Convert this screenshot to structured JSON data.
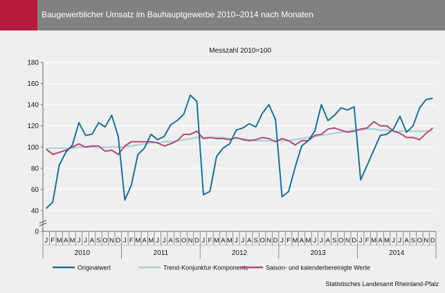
{
  "title": "Baugewerblicher Umsatz im Bauhauptgewerbe 2010–2014 nach Monaten",
  "source": "Statistisches Landesamt Rheinland-Pfalz",
  "chart_data": {
    "type": "line",
    "subtitle": "Messzahl 2010=100",
    "month_labels": [
      "J",
      "F",
      "M",
      "A",
      "M",
      "J",
      "J",
      "A",
      "S",
      "O",
      "N",
      "D"
    ],
    "years": [
      "2010",
      "2011",
      "2012",
      "2013",
      "2014"
    ],
    "y_ticks": [
      0,
      40,
      60,
      80,
      100,
      120,
      140,
      160,
      180
    ],
    "y_axis_break": true,
    "ylim": [
      0,
      180
    ],
    "grid": true,
    "legend_position": "bottom",
    "series": [
      {
        "name": "Originalwert",
        "color": "#1a6f97",
        "values": [
          42,
          48,
          83,
          95,
          102,
          123,
          111,
          112,
          123,
          119,
          130,
          110,
          50,
          64,
          93,
          99,
          112,
          107,
          110,
          121,
          125,
          131,
          149,
          143,
          55,
          58,
          91,
          99,
          103,
          116,
          118,
          122,
          119,
          132,
          140,
          126,
          53,
          58,
          81,
          101,
          106,
          115,
          140,
          125,
          130,
          137,
          135,
          138,
          69,
          83,
          97,
          111,
          112,
          117,
          129,
          114,
          120,
          137,
          145,
          146
        ]
      },
      {
        "name": "Trend-Konjunktur-Komponente",
        "color": "#a9cfe0",
        "values": [
          99,
          99,
          99,
          99,
          99,
          100,
          100,
          100,
          100,
          100,
          100,
          100,
          100,
          101,
          102,
          103,
          104,
          104,
          105,
          105,
          106,
          107,
          108,
          109,
          109,
          109,
          109,
          109,
          108,
          108,
          108,
          107,
          106,
          106,
          106,
          106,
          106,
          106,
          107,
          108,
          109,
          110,
          111,
          112,
          113,
          114,
          115,
          116,
          116,
          117,
          117,
          116,
          116,
          115,
          115,
          115,
          115,
          115,
          115,
          115
        ]
      },
      {
        "name": "Saison- und kalenderbereinigte Werte",
        "color": "#b14a78",
        "values": [
          98,
          93,
          95,
          97,
          100,
          103,
          100,
          101,
          101,
          96,
          97,
          93,
          101,
          105,
          105,
          105,
          105,
          104,
          101,
          103,
          106,
          112,
          112,
          115,
          108,
          109,
          108,
          108,
          107,
          109,
          107,
          106,
          107,
          109,
          108,
          105,
          108,
          106,
          102,
          106,
          106,
          111,
          112,
          117,
          118,
          116,
          114,
          115,
          117,
          118,
          124,
          120,
          120,
          115,
          113,
          109,
          109,
          107,
          113,
          118
        ]
      }
    ]
  }
}
